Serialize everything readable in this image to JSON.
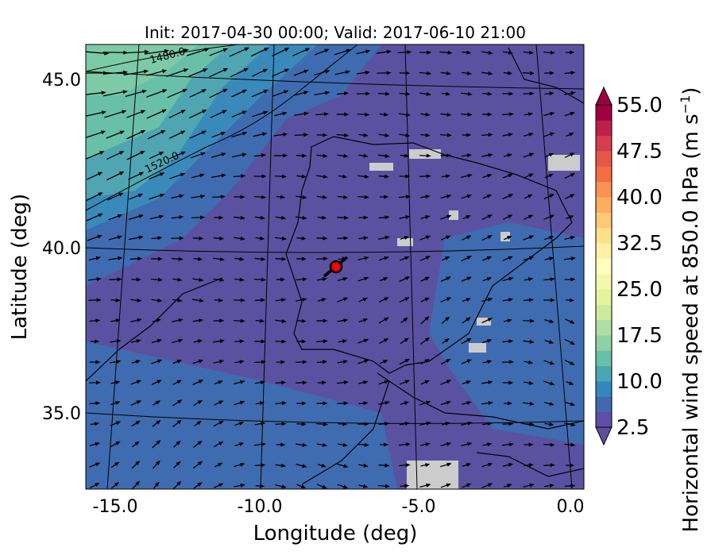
{
  "title": "Init: 2017-04-30 00:00; Valid: 2017-06-10 21:00",
  "xlabel": "Longitude (deg)",
  "ylabel": "Latitude (deg)",
  "xticks": [
    "-15.0",
    "-10.0",
    "-5.0",
    "0.0"
  ],
  "yticks": [
    "45.0",
    "40.0",
    "35.0"
  ],
  "colorbar": {
    "label": "Horizontal wind speed at 850.0 hPa (m s",
    "label_sup": "−1",
    "label_end": ")",
    "ticks": [
      "2.5",
      "10.0",
      "17.5",
      "25.0",
      "32.5",
      "40.0",
      "47.5",
      "55.0"
    ],
    "range": [
      2.5,
      55.0
    ],
    "extend": "both",
    "colors": [
      "#5e4fa2",
      "#4268b0",
      "#3387bc",
      "#4ea5b2",
      "#69c0a8",
      "#8fd1a4",
      "#b0dea2",
      "#cdea9e",
      "#e4f49a",
      "#f2f9ac",
      "#fffebe",
      "#fff0a6",
      "#fee08b",
      "#fdc877",
      "#fdae61",
      "#f99254",
      "#f46d43",
      "#e55749",
      "#d53e4f",
      "#be2148",
      "#9e0142"
    ]
  },
  "contour_labels": [
    "1480.0",
    "1520.0"
  ],
  "marker": {
    "lon": -7.6,
    "lat": 39.4,
    "color": "#ff0000"
  },
  "map_data": {
    "lon_range": [
      -16,
      0.2
    ],
    "lat_range": [
      32.7,
      46.1
    ],
    "background_color": "#5a52a0",
    "missing_color": "#cccccc"
  }
}
